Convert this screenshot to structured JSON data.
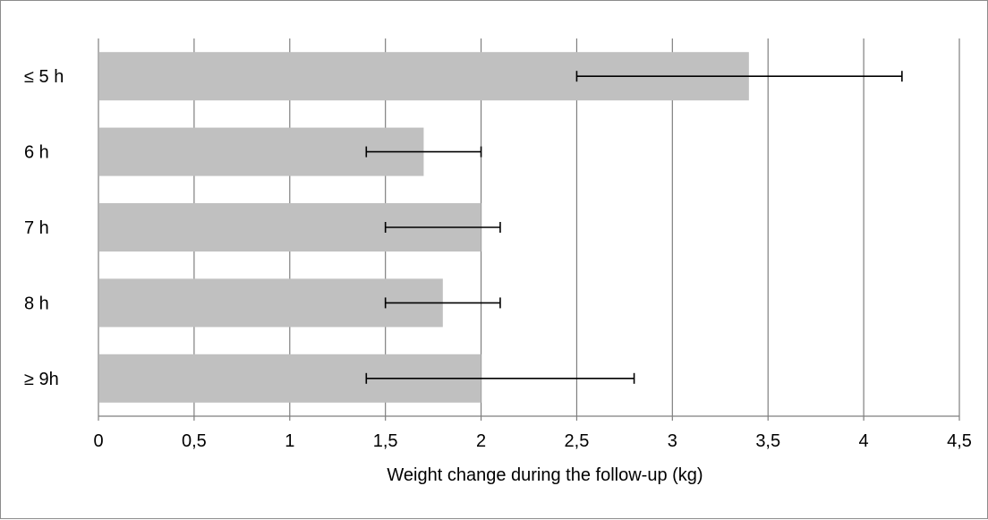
{
  "chart_data": {
    "type": "bar",
    "orientation": "horizontal",
    "title": "",
    "xlabel": "Weight change during the follow-up (kg)",
    "ylabel": "",
    "categories": [
      "≤ 5 h",
      "6 h",
      "7 h",
      "8 h",
      "≥ 9h"
    ],
    "values": [
      3.4,
      1.7,
      2.0,
      1.8,
      2.0
    ],
    "error_low": [
      2.5,
      1.4,
      1.5,
      1.5,
      1.4
    ],
    "error_high": [
      4.2,
      2.0,
      2.1,
      2.1,
      2.8
    ],
    "xlim": [
      0,
      4.5
    ],
    "xticks": [
      0,
      0.5,
      1,
      1.5,
      2,
      2.5,
      3,
      3.5,
      4,
      4.5
    ],
    "xtick_labels": [
      "0",
      "0,5",
      "1",
      "1,5",
      "2",
      "2,5",
      "3",
      "3,5",
      "4",
      "4,5"
    ],
    "grid": "vertical",
    "legend": "none",
    "bar_color": "#c0c0c0",
    "error_bar_color": "#000000",
    "grid_color": "#7f7f7f"
  }
}
